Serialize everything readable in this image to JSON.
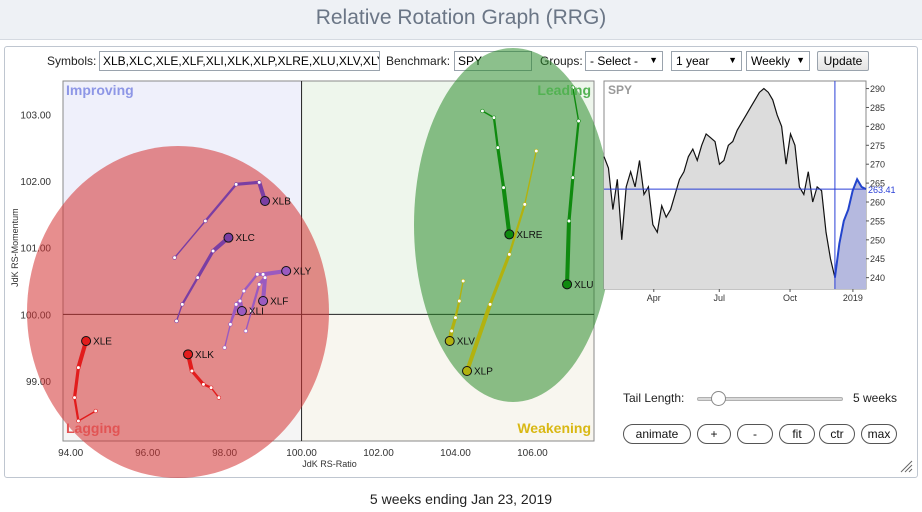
{
  "title": "Relative Rotation Graph (RRG)",
  "controls": {
    "symbols_label": "Symbols:",
    "symbols_value": "XLB,XLC,XLE,XLF,XLI,XLK,XLP,XLRE,XLU,XLV,XLY",
    "benchmark_label": "Benchmark:",
    "benchmark_value": "SPY",
    "groups_label": "Groups:",
    "groups_value": "- Select -",
    "period_value": "1 year",
    "frequency_value": "Weekly",
    "update_label": "Update"
  },
  "tail": {
    "label": "Tail Length:",
    "value_text": "5 weeks",
    "weeks": 5
  },
  "buttons": [
    "animate",
    "+",
    "-",
    "fit",
    "ctr",
    "max"
  ],
  "footer": "5 weeks ending Jan 23, 2019",
  "chart_data": [
    {
      "type": "scatter",
      "subtype": "rrg",
      "xlabel": "JdK RS-Ratio",
      "ylabel": "JdK RS-Momentum",
      "xlim": [
        93.8,
        107.6
      ],
      "ylim": [
        98.1,
        103.5
      ],
      "x_ticks": [
        "94.00",
        "96.00",
        "98.00",
        "100.00",
        "102.00",
        "104.00",
        "106.00"
      ],
      "y_ticks": [
        "99.00",
        "100.00",
        "101.00",
        "102.00",
        "103.00"
      ],
      "quadrants": {
        "improving": {
          "label": "Improving",
          "color": "#8d96e6",
          "fill": "#eff0fb"
        },
        "leading": {
          "label": "Leading",
          "color": "#52b252",
          "fill": "#eef6ec"
        },
        "weakening": {
          "label": "Weakening",
          "color": "#d9b814",
          "fill": "#f8f6ef"
        },
        "lagging": {
          "label": "Lagging",
          "color": "#e25454",
          "fill": "#f5f5f5"
        }
      },
      "series": [
        {
          "name": "XLB",
          "color": "#7a3ea3",
          "points": [
            [
              96.7,
              100.85
            ],
            [
              97.5,
              101.4
            ],
            [
              98.3,
              101.95
            ],
            [
              98.9,
              101.98
            ],
            [
              99.05,
              101.7
            ]
          ]
        },
        {
          "name": "XLC",
          "color": "#7a3ea3",
          "points": [
            [
              96.75,
              99.9
            ],
            [
              96.9,
              100.15
            ],
            [
              97.3,
              100.55
            ],
            [
              97.7,
              100.95
            ],
            [
              98.1,
              101.15
            ]
          ]
        },
        {
          "name": "XLY",
          "color": "#9a5ac0",
          "points": [
            [
              98.15,
              99.85
            ],
            [
              98.5,
              100.35
            ],
            [
              98.85,
              100.6
            ],
            [
              99.0,
              100.6
            ],
            [
              99.6,
              100.65
            ]
          ]
        },
        {
          "name": "XLF",
          "color": "#9a5ac0",
          "points": [
            [
              98.55,
              99.75
            ],
            [
              98.7,
              100.05
            ],
            [
              98.9,
              100.45
            ],
            [
              99.05,
              100.55
            ],
            [
              99.0,
              100.2
            ]
          ]
        },
        {
          "name": "XLI",
          "color": "#9a5ac0",
          "points": [
            [
              98.0,
              99.5
            ],
            [
              98.15,
              99.85
            ],
            [
              98.3,
              100.15
            ],
            [
              98.4,
              100.2
            ],
            [
              98.45,
              100.05
            ]
          ]
        },
        {
          "name": "XLE",
          "color": "#e21c1c",
          "points": [
            [
              94.65,
              98.55
            ],
            [
              94.2,
              98.4
            ],
            [
              94.1,
              98.75
            ],
            [
              94.2,
              99.2
            ],
            [
              94.4,
              99.6
            ]
          ]
        },
        {
          "name": "XLK",
          "color": "#e21c1c",
          "points": [
            [
              97.85,
              98.75
            ],
            [
              97.65,
              98.9
            ],
            [
              97.45,
              98.95
            ],
            [
              97.15,
              99.15
            ],
            [
              97.05,
              99.4
            ]
          ]
        },
        {
          "name": "XLRE",
          "color": "#0f8a0f",
          "points": [
            [
              104.7,
              103.05
            ],
            [
              105.0,
              102.95
            ],
            [
              105.1,
              102.5
            ],
            [
              105.25,
              101.9
            ],
            [
              105.4,
              101.2
            ]
          ]
        },
        {
          "name": "XLU",
          "color": "#0f8a0f",
          "points": [
            [
              107.05,
              103.4
            ],
            [
              107.2,
              102.9
            ],
            [
              107.05,
              102.05
            ],
            [
              106.95,
              101.4
            ],
            [
              106.9,
              100.45
            ]
          ]
        },
        {
          "name": "XLV",
          "color": "#b2b20f",
          "points": [
            [
              104.2,
              100.5
            ],
            [
              104.1,
              100.2
            ],
            [
              104.0,
              99.95
            ],
            [
              103.9,
              99.75
            ],
            [
              103.85,
              99.6
            ]
          ]
        },
        {
          "name": "XLP",
          "color": "#b2b20f",
          "points": [
            [
              106.1,
              102.45
            ],
            [
              105.8,
              101.65
            ],
            [
              105.4,
              100.9
            ],
            [
              104.9,
              100.15
            ],
            [
              104.3,
              99.15
            ]
          ]
        }
      ]
    },
    {
      "type": "area",
      "title": "SPY",
      "x_ticks": [
        "Apr",
        "Jul",
        "Oct",
        "2019"
      ],
      "ylim": [
        237,
        292
      ],
      "y_ticks": [
        "240",
        "245",
        "250",
        "255",
        "260",
        "265",
        "270",
        "275",
        "280",
        "285",
        "290"
      ],
      "last_value": 263.41,
      "values": [
        272,
        269,
        258,
        266,
        250,
        264,
        268,
        264,
        271,
        262,
        264,
        254,
        252,
        259,
        256,
        258,
        262,
        266,
        268,
        272,
        274,
        271,
        275,
        278,
        277,
        276,
        270,
        271,
        275,
        276,
        279,
        281,
        283,
        285,
        287,
        289,
        290,
        289,
        287,
        283,
        280,
        270,
        278,
        275,
        264,
        262,
        268,
        260,
        264,
        263,
        252,
        245,
        240,
        249,
        255,
        258,
        263,
        266,
        264,
        263.41
      ],
      "highlight_from_index": 52
    }
  ]
}
